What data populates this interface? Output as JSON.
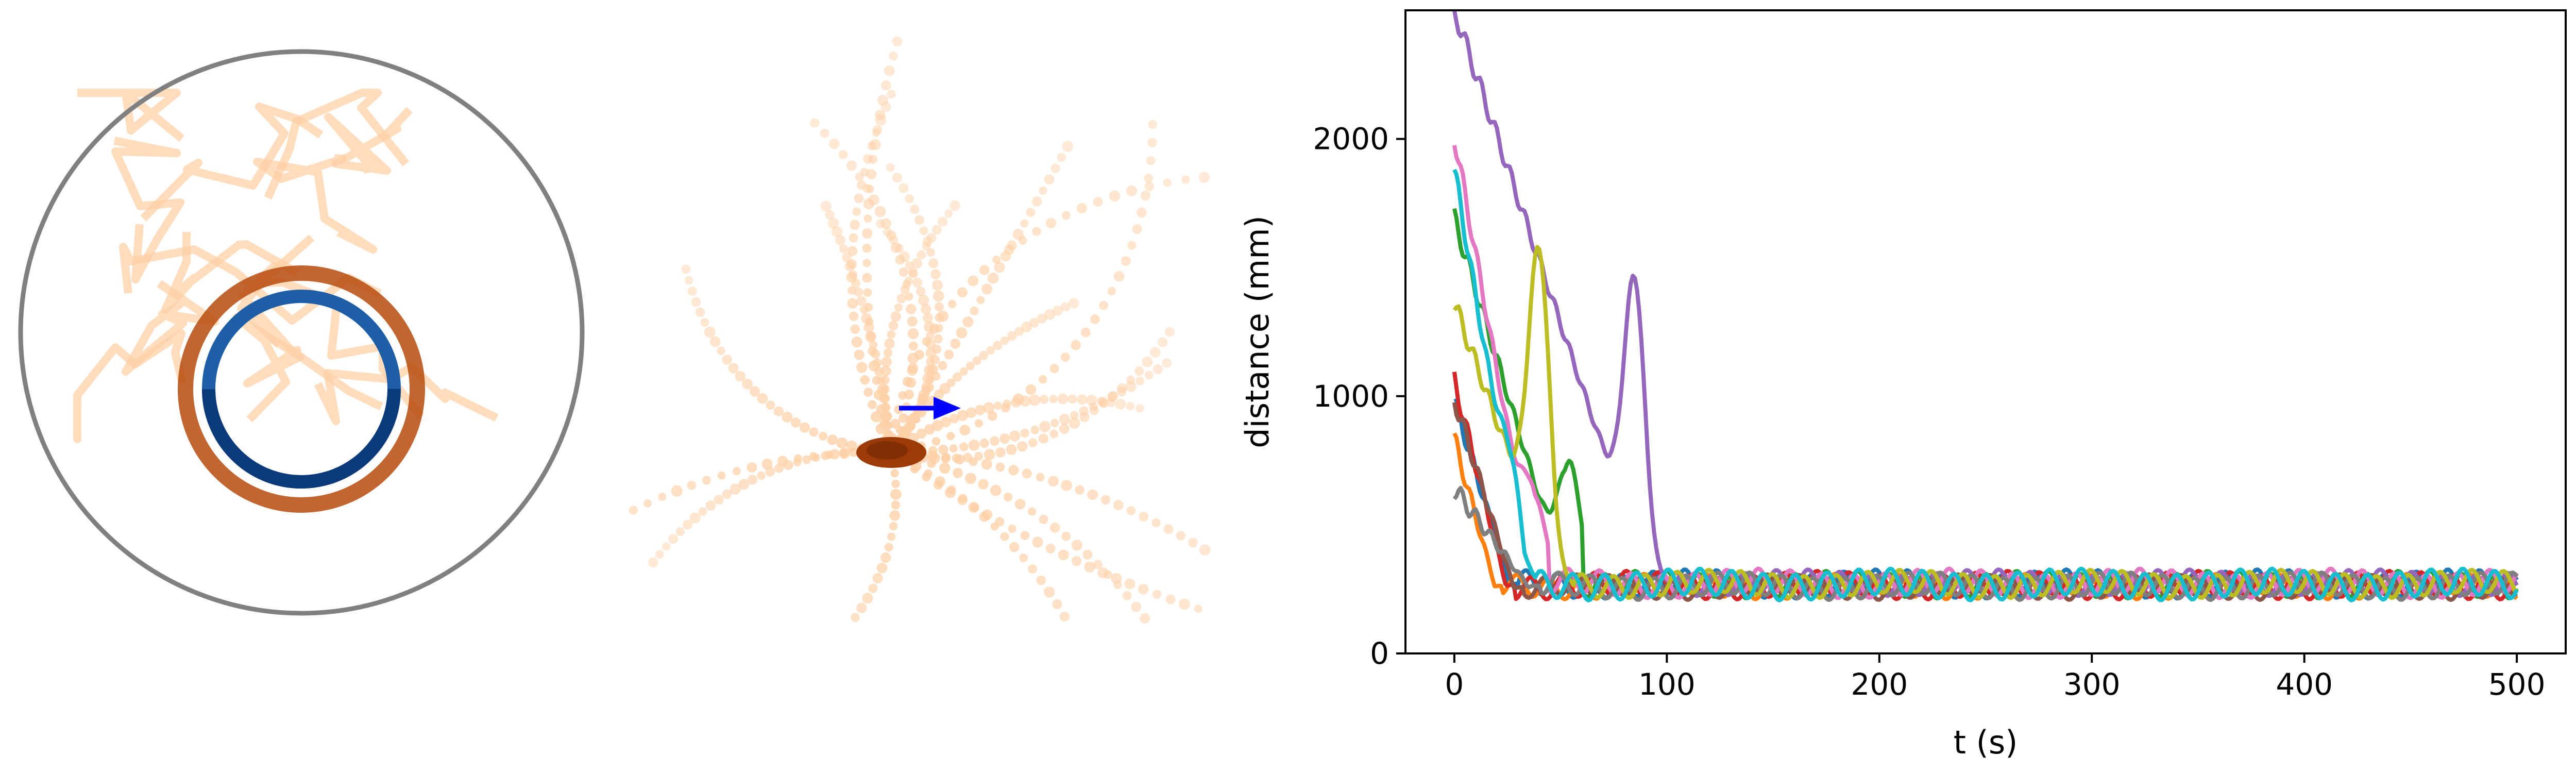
{
  "chart_data": [
    {
      "type": "scatter",
      "description_role": "panel-1",
      "has_axes": false,
      "boundary": "circle",
      "colors": {
        "boundary": "#808080",
        "orbit_dark": "#0b3a7a",
        "orbit_light": "#2b78c4",
        "traces": "#a83c08",
        "traces_light": "#fdd0a6"
      }
    },
    {
      "type": "scatter",
      "description_role": "panel-2",
      "has_axes": false,
      "arrow": "right",
      "colors": {
        "arrow": "#0000ff",
        "traces": "#a83c08",
        "traces_light": "#fdd0a6"
      }
    },
    {
      "type": "line",
      "xlabel": "t (s)",
      "ylabel": "distance (mm)",
      "xlim": [
        -23,
        523
      ],
      "ylim": [
        0,
        2500
      ],
      "xticks": [
        0,
        100,
        200,
        300,
        400,
        500
      ],
      "yticks": [
        0,
        1000,
        2000
      ],
      "grid": false,
      "series": [
        {
          "color": "#1f77b4",
          "start": 980,
          "settle_t": 30,
          "base": 270,
          "amp": 45
        },
        {
          "color": "#ff7f0e",
          "start": 830,
          "settle_t": 22,
          "base": 262,
          "amp": 40
        },
        {
          "color": "#2ca02c",
          "start": 1690,
          "settle_t": 60,
          "base": 268,
          "amp": 42,
          "peak_t": 54,
          "peak": 750
        },
        {
          "color": "#d62728",
          "start": 1060,
          "settle_t": 28,
          "base": 265,
          "amp": 44
        },
        {
          "color": "#9467bd",
          "start": 2500,
          "settle_t": 105,
          "base": 275,
          "amp": 40,
          "peak_t": 85,
          "peak": 1310
        },
        {
          "color": "#8c564b",
          "start": 990,
          "settle_t": 32,
          "base": 258,
          "amp": 38
        },
        {
          "color": "#e377c2",
          "start": 2010,
          "settle_t": 44,
          "base": 272,
          "amp": 46,
          "peak_t": 38,
          "peak": 600
        },
        {
          "color": "#7f7f7f",
          "start": 640,
          "settle_t": 40,
          "base": 262,
          "amp": 42
        },
        {
          "color": "#bcbd22",
          "start": 1360,
          "settle_t": 55,
          "base": 270,
          "amp": 43,
          "peak_t": 40,
          "peak": 1400
        },
        {
          "color": "#17becf",
          "start": 1880,
          "settle_t": 38,
          "base": 268,
          "amp": 50,
          "peak_t": 28,
          "peak": 480
        }
      ]
    }
  ]
}
